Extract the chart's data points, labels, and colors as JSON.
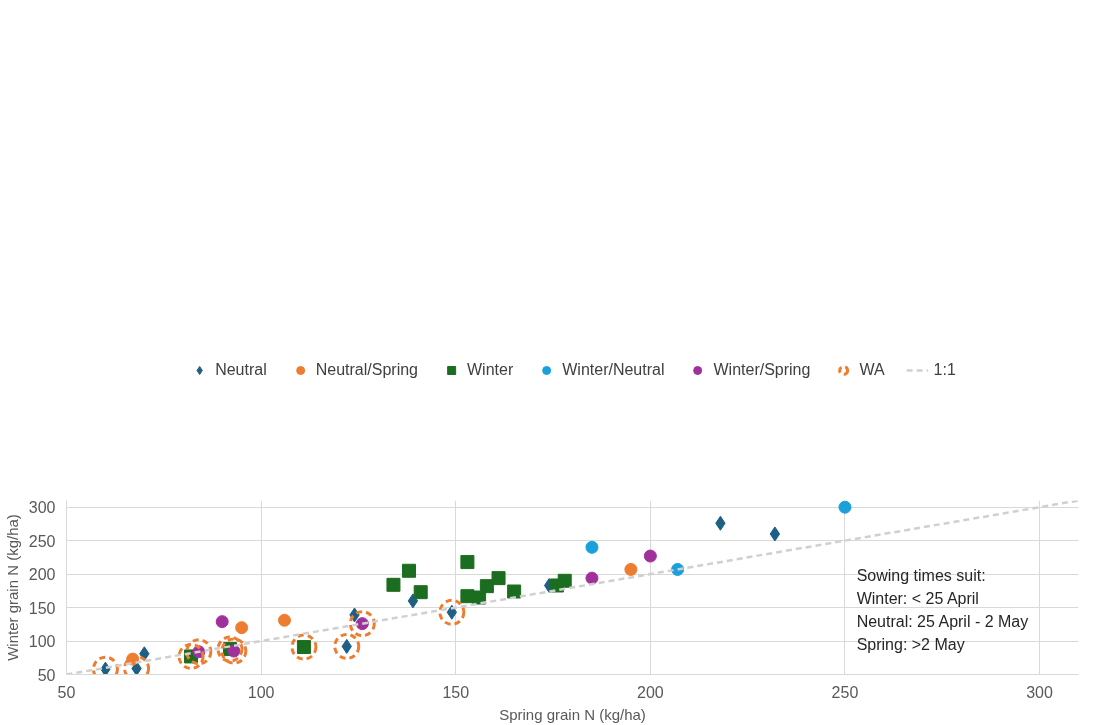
{
  "chart_data": {
    "type": "scatter",
    "xlabel": "Spring grain N (kg/ha)",
    "ylabel": "Winter grain N (kg/ha)",
    "xlim": [
      50,
      310
    ],
    "ylim": [
      50,
      310
    ],
    "xticks": [
      50,
      100,
      150,
      200,
      250,
      300
    ],
    "yticks": [
      50,
      100,
      150,
      200,
      250,
      300
    ],
    "grid": true,
    "legend": "top",
    "series": [
      {
        "name": "Neutral",
        "color": "#1f5f85",
        "marker": "diamond",
        "x": [
          60,
          68,
          70,
          122,
          124,
          149,
          139,
          174,
          218,
          232
        ],
        "values": [
          58,
          59,
          81,
          92,
          139,
          143,
          160,
          183,
          276,
          260
        ]
      },
      {
        "name": "Neutral/Spring",
        "color": "#ee7d31",
        "marker": "circle",
        "x": [
          67,
          95,
          106,
          195
        ],
        "values": [
          73,
          120,
          131,
          207
        ]
      },
      {
        "name": "Winter",
        "color": "#1b6e1f",
        "marker": "square",
        "x": [
          82,
          92,
          111,
          134,
          138,
          141,
          153,
          153,
          156,
          158,
          161,
          165,
          176,
          178
        ],
        "values": [
          77,
          88,
          91,
          184,
          205,
          173,
          218,
          167,
          165,
          182,
          194,
          174,
          183,
          190
        ]
      },
      {
        "name": "Winter/Neutral",
        "color": "#1aa0db",
        "marker": "circle",
        "x": [
          185,
          207,
          250
        ],
        "values": [
          240,
          207,
          300
        ]
      },
      {
        "name": "Winter/Spring",
        "color": "#a0319b",
        "marker": "circle",
        "x": [
          84,
          93,
          90,
          126,
          185,
          200
        ],
        "values": [
          84,
          85,
          129,
          126,
          194,
          227
        ]
      },
      {
        "name": "WA",
        "color": "#ee7d31",
        "marker": "circle",
        "line_style": "dashed",
        "x": [
          60,
          68,
          82,
          84,
          92,
          93,
          111,
          122,
          126,
          149
        ],
        "values": [
          58,
          59,
          77,
          84,
          88,
          85,
          91,
          92,
          126,
          143
        ]
      },
      {
        "name": "1:1",
        "type": "line",
        "color": "#d0d0d0",
        "line_style": "dashed",
        "x": [
          50,
          310
        ],
        "values": [
          50,
          310
        ]
      }
    ],
    "annotations": [
      "Sowing times suit:",
      "Winter: < 25 April",
      "Neutral: 25 April - 2 May",
      "Spring: >2 May"
    ]
  }
}
